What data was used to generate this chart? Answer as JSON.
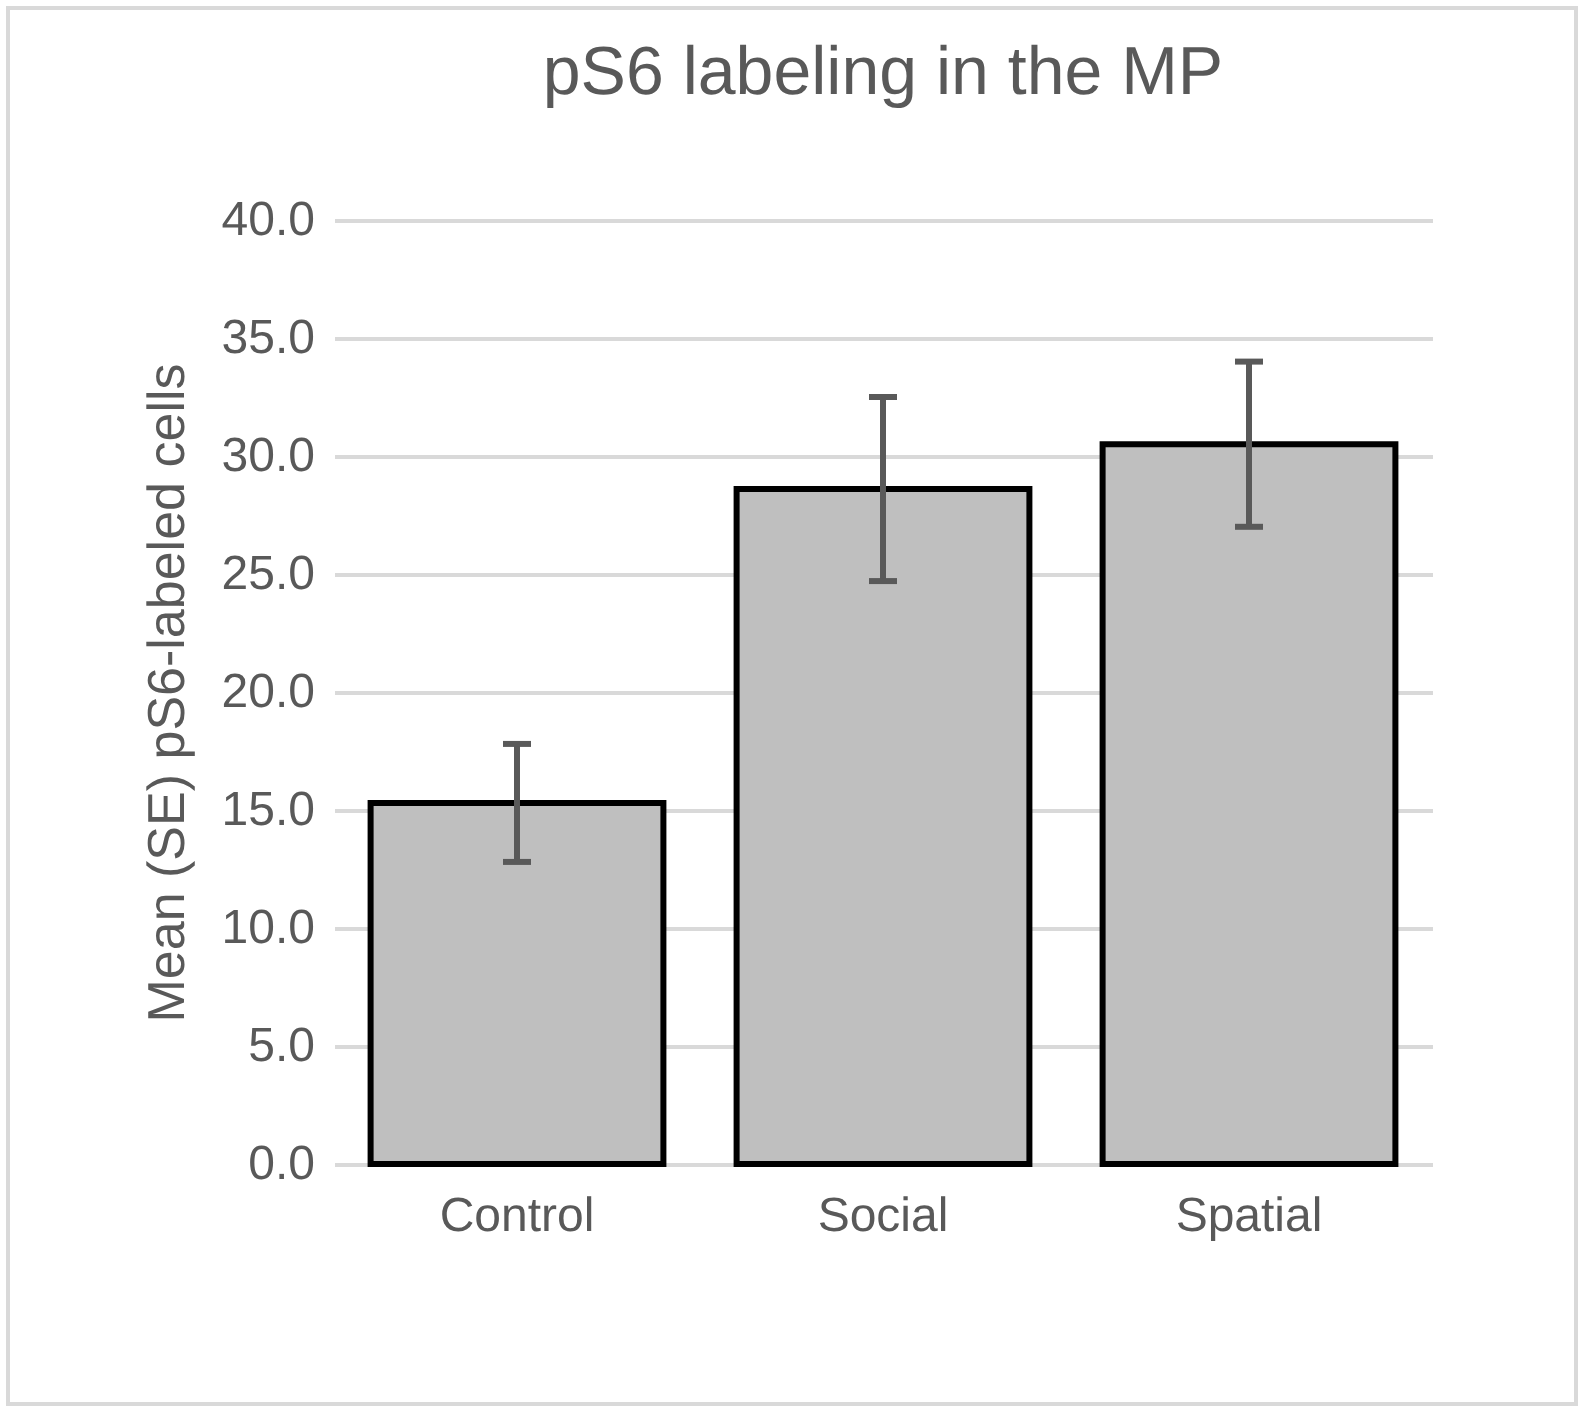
{
  "chart_data": {
    "type": "bar",
    "title": "pS6 labeling in the MP",
    "ylabel": "Mean (SE) pS6-labeled cells",
    "categories": [
      "Control",
      "Social",
      "Spatial"
    ],
    "values": [
      15.3,
      28.6,
      30.5
    ],
    "errors": [
      2.5,
      3.9,
      3.5
    ],
    "color": "#bfbfbf",
    "ylim": [
      0,
      40
    ],
    "yticks": [
      {
        "value": 0,
        "label": "0.0"
      },
      {
        "value": 5,
        "label": "5.0"
      },
      {
        "value": 10,
        "label": "10.0"
      },
      {
        "value": 15,
        "label": "15.0"
      },
      {
        "value": 20,
        "label": "20.0"
      },
      {
        "value": 25,
        "label": "25.0"
      },
      {
        "value": 30,
        "label": "30.0"
      },
      {
        "value": 35,
        "label": "35.0"
      },
      {
        "value": 40,
        "label": "40.0"
      }
    ],
    "grid": "y"
  }
}
